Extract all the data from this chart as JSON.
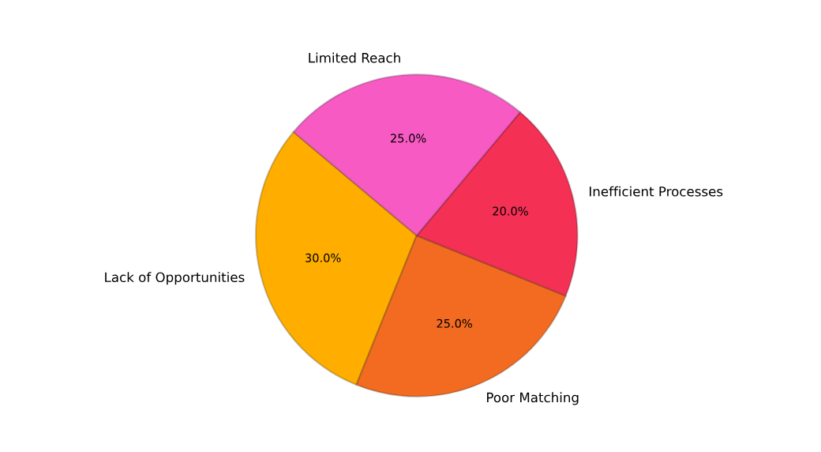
{
  "chart_data": {
    "type": "pie",
    "categories": [
      "Lack of Opportunities",
      "Poor Matching",
      "Inefficient Processes",
      "Limited Reach"
    ],
    "values": [
      30,
      25,
      20,
      25
    ],
    "colors": [
      "#ffae00",
      "#f26b21",
      "#f43055",
      "#f75ac3"
    ],
    "value_labels": [
      "30.0%",
      "25.0%",
      "20.0%",
      "25.0%"
    ]
  }
}
